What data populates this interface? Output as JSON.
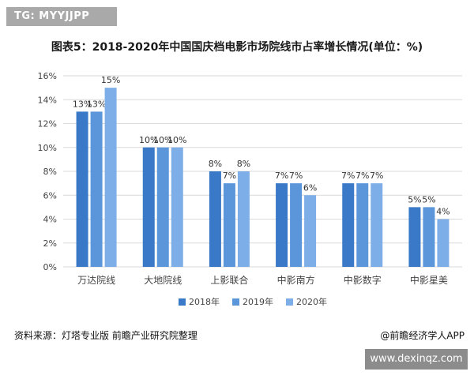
{
  "badge": {
    "text": "TG: MYYJJPP"
  },
  "footer": {
    "source": "资料来源：灯塔专业版 前瞻产业研究院整理",
    "credit": "@前瞻经济学人APP"
  },
  "watermark": {
    "url": "www.dexinqz.com"
  },
  "chart_data": {
    "type": "bar",
    "title": "图表5：2018-2020年中国国庆档电影市场院线市占率增长情况(单位：%)",
    "categories": [
      "万达院线",
      "大地院线",
      "上影联合",
      "中影南方",
      "中影数字",
      "中影星美"
    ],
    "series": [
      {
        "name": "2018年",
        "values": [
          13,
          10,
          8,
          7,
          7,
          5
        ],
        "labels": [
          "13%",
          "10%",
          "8%",
          "7%",
          "7%",
          "5%"
        ],
        "color": "#3a78c8"
      },
      {
        "name": "2019年",
        "values": [
          13,
          10,
          7,
          7,
          7,
          5
        ],
        "labels": [
          "13%",
          "10%",
          "7%",
          "7%",
          "7%",
          "5%"
        ],
        "color": "#5b96db"
      },
      {
        "name": "2020年",
        "values": [
          15,
          10,
          8,
          6,
          7,
          4
        ],
        "labels": [
          "15%",
          "10%",
          "8%",
          "6%",
          "7%",
          "4%"
        ],
        "color": "#7eaee8"
      }
    ],
    "yticks": [
      "0%",
      "2%",
      "4%",
      "6%",
      "8%",
      "10%",
      "12%",
      "14%",
      "16%"
    ],
    "ylim": [
      0,
      16
    ],
    "grid": true,
    "legend_position": "bottom"
  }
}
